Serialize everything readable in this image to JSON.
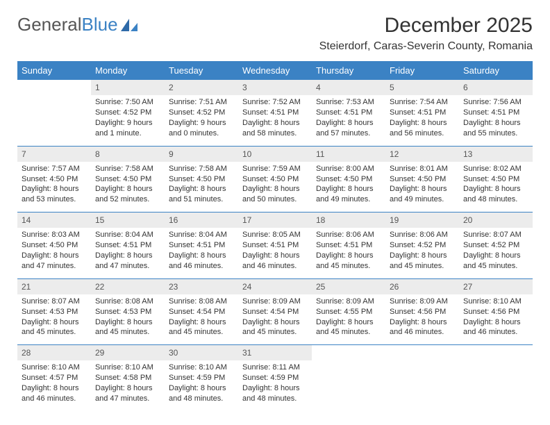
{
  "brand": {
    "part1": "General",
    "part2": "Blue"
  },
  "title": "December 2025",
  "location": "Steierdorf, Caras-Severin County, Romania",
  "weekdays": [
    "Sunday",
    "Monday",
    "Tuesday",
    "Wednesday",
    "Thursday",
    "Friday",
    "Saturday"
  ],
  "colors": {
    "header_bg": "#3b82c4",
    "header_fg": "#ffffff",
    "daynum_bg": "#ececec",
    "row_border": "#3b82c4",
    "text": "#333333",
    "background": "#ffffff"
  },
  "font": {
    "family": "Arial",
    "title_size": 30,
    "location_size": 16,
    "header_size": 13,
    "cell_size": 11,
    "daynum_size": 12
  },
  "weeks": [
    [
      {
        "n": "",
        "sr": "",
        "ss": "",
        "dl1": "",
        "dl2": "",
        "blank": true
      },
      {
        "n": "1",
        "sr": "Sunrise: 7:50 AM",
        "ss": "Sunset: 4:52 PM",
        "dl1": "Daylight: 9 hours",
        "dl2": "and 1 minute."
      },
      {
        "n": "2",
        "sr": "Sunrise: 7:51 AM",
        "ss": "Sunset: 4:52 PM",
        "dl1": "Daylight: 9 hours",
        "dl2": "and 0 minutes."
      },
      {
        "n": "3",
        "sr": "Sunrise: 7:52 AM",
        "ss": "Sunset: 4:51 PM",
        "dl1": "Daylight: 8 hours",
        "dl2": "and 58 minutes."
      },
      {
        "n": "4",
        "sr": "Sunrise: 7:53 AM",
        "ss": "Sunset: 4:51 PM",
        "dl1": "Daylight: 8 hours",
        "dl2": "and 57 minutes."
      },
      {
        "n": "5",
        "sr": "Sunrise: 7:54 AM",
        "ss": "Sunset: 4:51 PM",
        "dl1": "Daylight: 8 hours",
        "dl2": "and 56 minutes."
      },
      {
        "n": "6",
        "sr": "Sunrise: 7:56 AM",
        "ss": "Sunset: 4:51 PM",
        "dl1": "Daylight: 8 hours",
        "dl2": "and 55 minutes."
      }
    ],
    [
      {
        "n": "7",
        "sr": "Sunrise: 7:57 AM",
        "ss": "Sunset: 4:50 PM",
        "dl1": "Daylight: 8 hours",
        "dl2": "and 53 minutes."
      },
      {
        "n": "8",
        "sr": "Sunrise: 7:58 AM",
        "ss": "Sunset: 4:50 PM",
        "dl1": "Daylight: 8 hours",
        "dl2": "and 52 minutes."
      },
      {
        "n": "9",
        "sr": "Sunrise: 7:58 AM",
        "ss": "Sunset: 4:50 PM",
        "dl1": "Daylight: 8 hours",
        "dl2": "and 51 minutes."
      },
      {
        "n": "10",
        "sr": "Sunrise: 7:59 AM",
        "ss": "Sunset: 4:50 PM",
        "dl1": "Daylight: 8 hours",
        "dl2": "and 50 minutes."
      },
      {
        "n": "11",
        "sr": "Sunrise: 8:00 AM",
        "ss": "Sunset: 4:50 PM",
        "dl1": "Daylight: 8 hours",
        "dl2": "and 49 minutes."
      },
      {
        "n": "12",
        "sr": "Sunrise: 8:01 AM",
        "ss": "Sunset: 4:50 PM",
        "dl1": "Daylight: 8 hours",
        "dl2": "and 49 minutes."
      },
      {
        "n": "13",
        "sr": "Sunrise: 8:02 AM",
        "ss": "Sunset: 4:50 PM",
        "dl1": "Daylight: 8 hours",
        "dl2": "and 48 minutes."
      }
    ],
    [
      {
        "n": "14",
        "sr": "Sunrise: 8:03 AM",
        "ss": "Sunset: 4:50 PM",
        "dl1": "Daylight: 8 hours",
        "dl2": "and 47 minutes."
      },
      {
        "n": "15",
        "sr": "Sunrise: 8:04 AM",
        "ss": "Sunset: 4:51 PM",
        "dl1": "Daylight: 8 hours",
        "dl2": "and 47 minutes."
      },
      {
        "n": "16",
        "sr": "Sunrise: 8:04 AM",
        "ss": "Sunset: 4:51 PM",
        "dl1": "Daylight: 8 hours",
        "dl2": "and 46 minutes."
      },
      {
        "n": "17",
        "sr": "Sunrise: 8:05 AM",
        "ss": "Sunset: 4:51 PM",
        "dl1": "Daylight: 8 hours",
        "dl2": "and 46 minutes."
      },
      {
        "n": "18",
        "sr": "Sunrise: 8:06 AM",
        "ss": "Sunset: 4:51 PM",
        "dl1": "Daylight: 8 hours",
        "dl2": "and 45 minutes."
      },
      {
        "n": "19",
        "sr": "Sunrise: 8:06 AM",
        "ss": "Sunset: 4:52 PM",
        "dl1": "Daylight: 8 hours",
        "dl2": "and 45 minutes."
      },
      {
        "n": "20",
        "sr": "Sunrise: 8:07 AM",
        "ss": "Sunset: 4:52 PM",
        "dl1": "Daylight: 8 hours",
        "dl2": "and 45 minutes."
      }
    ],
    [
      {
        "n": "21",
        "sr": "Sunrise: 8:07 AM",
        "ss": "Sunset: 4:53 PM",
        "dl1": "Daylight: 8 hours",
        "dl2": "and 45 minutes."
      },
      {
        "n": "22",
        "sr": "Sunrise: 8:08 AM",
        "ss": "Sunset: 4:53 PM",
        "dl1": "Daylight: 8 hours",
        "dl2": "and 45 minutes."
      },
      {
        "n": "23",
        "sr": "Sunrise: 8:08 AM",
        "ss": "Sunset: 4:54 PM",
        "dl1": "Daylight: 8 hours",
        "dl2": "and 45 minutes."
      },
      {
        "n": "24",
        "sr": "Sunrise: 8:09 AM",
        "ss": "Sunset: 4:54 PM",
        "dl1": "Daylight: 8 hours",
        "dl2": "and 45 minutes."
      },
      {
        "n": "25",
        "sr": "Sunrise: 8:09 AM",
        "ss": "Sunset: 4:55 PM",
        "dl1": "Daylight: 8 hours",
        "dl2": "and 45 minutes."
      },
      {
        "n": "26",
        "sr": "Sunrise: 8:09 AM",
        "ss": "Sunset: 4:56 PM",
        "dl1": "Daylight: 8 hours",
        "dl2": "and 46 minutes."
      },
      {
        "n": "27",
        "sr": "Sunrise: 8:10 AM",
        "ss": "Sunset: 4:56 PM",
        "dl1": "Daylight: 8 hours",
        "dl2": "and 46 minutes."
      }
    ],
    [
      {
        "n": "28",
        "sr": "Sunrise: 8:10 AM",
        "ss": "Sunset: 4:57 PM",
        "dl1": "Daylight: 8 hours",
        "dl2": "and 46 minutes."
      },
      {
        "n": "29",
        "sr": "Sunrise: 8:10 AM",
        "ss": "Sunset: 4:58 PM",
        "dl1": "Daylight: 8 hours",
        "dl2": "and 47 minutes."
      },
      {
        "n": "30",
        "sr": "Sunrise: 8:10 AM",
        "ss": "Sunset: 4:59 PM",
        "dl1": "Daylight: 8 hours",
        "dl2": "and 48 minutes."
      },
      {
        "n": "31",
        "sr": "Sunrise: 8:11 AM",
        "ss": "Sunset: 4:59 PM",
        "dl1": "Daylight: 8 hours",
        "dl2": "and 48 minutes."
      },
      {
        "n": "",
        "sr": "",
        "ss": "",
        "dl1": "",
        "dl2": "",
        "blank": true
      },
      {
        "n": "",
        "sr": "",
        "ss": "",
        "dl1": "",
        "dl2": "",
        "blank": true
      },
      {
        "n": "",
        "sr": "",
        "ss": "",
        "dl1": "",
        "dl2": "",
        "blank": true
      }
    ]
  ]
}
